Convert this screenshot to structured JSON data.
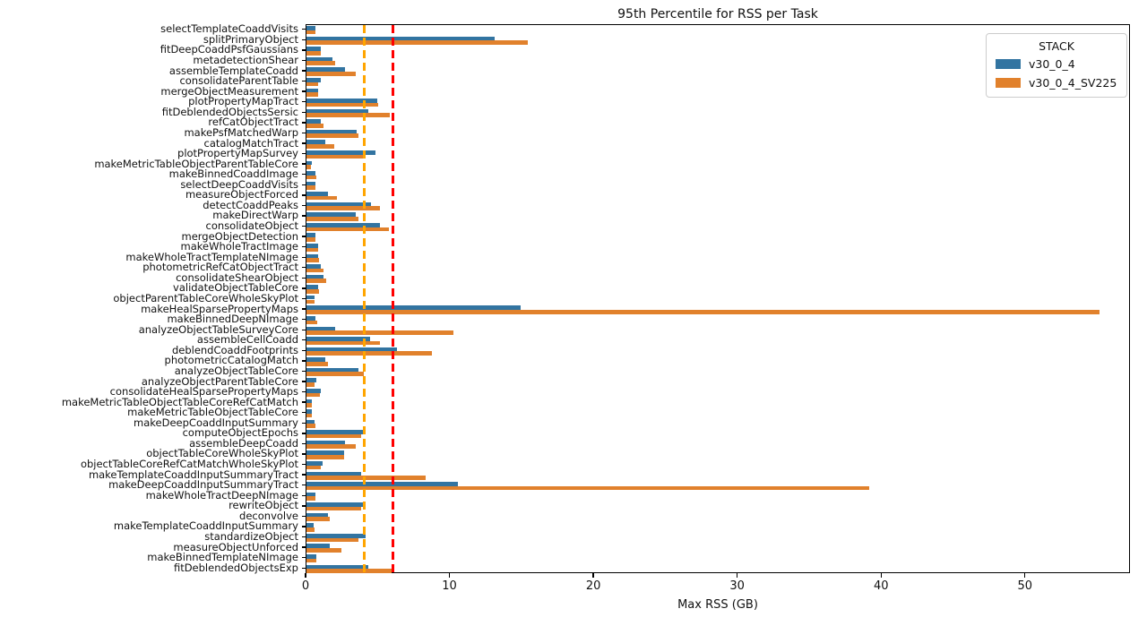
{
  "figure": {
    "title": "95th Percentile for RSS per Task",
    "xlabel": "Max RSS (GB)"
  },
  "legend": {
    "title": "STACK",
    "entries": [
      {
        "label": "v30_0_4",
        "color": "#3274a1"
      },
      {
        "label": "v30_0_4_SV225",
        "color": "#e1812c"
      }
    ]
  },
  "chart_data": {
    "type": "bar",
    "orientation": "horizontal",
    "title": "95th Percentile for RSS per Task",
    "xlabel": "Max RSS (GB)",
    "ylabel": "",
    "xlim": [
      0,
      57.3
    ],
    "xticks": [
      0,
      10,
      20,
      30,
      40,
      50
    ],
    "grid": false,
    "legend_position": "upper right",
    "legend_title": "STACK",
    "categories": [
      "selectTemplateCoaddVisits",
      "splitPrimaryObject",
      "fitDeepCoaddPsfGaussians",
      "metadetectionShear",
      "assembleTemplateCoadd",
      "consolidateParentTable",
      "mergeObjectMeasurement",
      "plotPropertyMapTract",
      "fitDeblendedObjectsSersic",
      "refCatObjectTract",
      "makePsfMatchedWarp",
      "catalogMatchTract",
      "plotPropertyMapSurvey",
      "makeMetricTableObjectParentTableCore",
      "makeBinnedCoaddImage",
      "selectDeepCoaddVisits",
      "measureObjectForced",
      "detectCoaddPeaks",
      "makeDirectWarp",
      "consolidateObject",
      "mergeObjectDetection",
      "makeWholeTractImage",
      "makeWholeTractTemplateNImage",
      "photometricRefCatObjectTract",
      "consolidateShearObject",
      "validateObjectTableCore",
      "objectParentTableCoreWholeSkyPlot",
      "makeHealSparsePropertyMaps",
      "makeBinnedDeepNImage",
      "analyzeObjectTableSurveyCore",
      "assembleCellCoadd",
      "deblendCoaddFootprints",
      "photometricCatalogMatch",
      "analyzeObjectTableCore",
      "analyzeObjectParentTableCore",
      "consolidateHealSparsePropertyMaps",
      "makeMetricTableObjectTableCoreRefCatMatch",
      "makeMetricTableObjectTableCore",
      "makeDeepCoaddInputSummary",
      "computeObjectEpochs",
      "assembleDeepCoadd",
      "objectTableCoreWholeSkyPlot",
      "objectTableCoreRefCatMatchWholeSkyPlot",
      "makeTemplateCoaddInputSummaryTract",
      "makeDeepCoaddInputSummaryTract",
      "makeWholeTractDeepNImage",
      "rewriteObject",
      "deconvolve",
      "makeTemplateCoaddInputSummary",
      "standardizeObject",
      "measureObjectUnforced",
      "makeBinnedTemplateNImage",
      "fitDeblendedObjectsExp"
    ],
    "series": [
      {
        "name": "v30_0_4",
        "color": "#3274a1",
        "values": [
          0.6,
          13.1,
          1.0,
          1.8,
          2.7,
          1.0,
          0.8,
          4.9,
          4.3,
          1.0,
          3.5,
          1.3,
          4.8,
          0.35,
          0.6,
          0.6,
          1.5,
          4.5,
          3.4,
          5.1,
          0.6,
          0.8,
          0.8,
          1.0,
          1.2,
          0.8,
          0.55,
          14.9,
          0.65,
          2.0,
          4.4,
          6.3,
          1.3,
          3.6,
          0.7,
          1.0,
          0.4,
          0.4,
          0.55,
          4.1,
          2.7,
          2.6,
          1.1,
          3.8,
          10.5,
          0.6,
          4.0,
          1.5,
          0.5,
          4.1,
          1.6,
          0.7,
          4.3
        ]
      },
      {
        "name": "v30_0_4_SV225",
        "color": "#e1812c",
        "values": [
          0.65,
          15.4,
          1.0,
          2.0,
          3.4,
          0.8,
          0.8,
          5.0,
          5.8,
          1.2,
          3.6,
          1.9,
          4.0,
          0.3,
          0.7,
          0.65,
          2.1,
          5.1,
          3.6,
          5.7,
          0.6,
          0.8,
          0.85,
          1.2,
          1.4,
          0.9,
          0.55,
          55.1,
          0.75,
          10.2,
          5.1,
          8.7,
          1.5,
          4.0,
          0.55,
          0.95,
          0.4,
          0.4,
          0.6,
          3.8,
          3.4,
          2.6,
          1.0,
          8.3,
          39.1,
          0.65,
          3.8,
          1.6,
          0.55,
          3.6,
          2.4,
          0.7,
          5.9
        ]
      }
    ],
    "vlines": [
      {
        "x": 4.0,
        "color": "#ffa500",
        "style": "dashed"
      },
      {
        "x": 6.0,
        "color": "#ff0000",
        "style": "dashed"
      }
    ]
  }
}
